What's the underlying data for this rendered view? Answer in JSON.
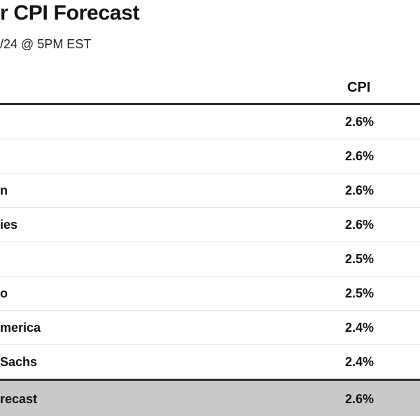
{
  "title": "r CPI Forecast",
  "subtitle": "/24 @ 5PM EST",
  "table": {
    "columns": [
      "",
      "CPI"
    ],
    "rows": [
      {
        "name": "",
        "cpi": "2.6%"
      },
      {
        "name": "",
        "cpi": "2.6%"
      },
      {
        "name": "n",
        "cpi": "2.6%"
      },
      {
        "name": "ies",
        "cpi": "2.6%"
      },
      {
        "name": "",
        "cpi": "2.5%"
      },
      {
        "name": "o",
        "cpi": "2.5%"
      },
      {
        "name": "merica",
        "cpi": "2.4%"
      },
      {
        "name": "Sachs",
        "cpi": "2.4%"
      }
    ],
    "total": {
      "name": "recast",
      "cpi": "2.6%"
    }
  }
}
